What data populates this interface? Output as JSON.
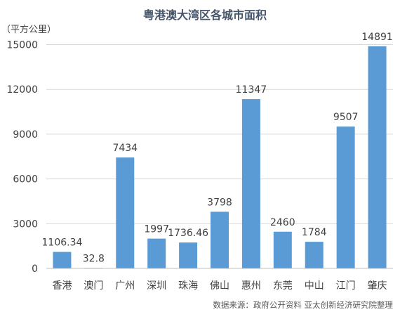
{
  "chart_data": {
    "type": "bar",
    "title": "粤港澳大湾区各城市面积",
    "ylabel": "（平方公里）",
    "xlabel": "",
    "ylim": [
      0,
      15000
    ],
    "yticks": [
      0,
      3000,
      6000,
      9000,
      12000,
      15000
    ],
    "grid": true,
    "categories": [
      "香港",
      "澳门",
      "广州",
      "深圳",
      "珠海",
      "佛山",
      "惠州",
      "东莞",
      "中山",
      "江门",
      "肇庆"
    ],
    "values": [
      1106.34,
      32.8,
      7434,
      1997,
      1736.46,
      3798,
      11347,
      2460,
      1784,
      9507,
      14891
    ],
    "value_labels": [
      "1106.34",
      "32.8",
      "7434",
      "1997",
      "1736.46",
      "3798",
      "11347",
      "2460",
      "1784",
      "9507",
      "14891"
    ],
    "source": "数据来源：政府公开资料  亚太创新经济研究院整理",
    "colors": {
      "bar": "#5b9bd5",
      "title": "#44546a",
      "text": "#404040",
      "grid": "#d9d9d9",
      "axis": "#bfbfbf",
      "source": "#595959"
    }
  }
}
